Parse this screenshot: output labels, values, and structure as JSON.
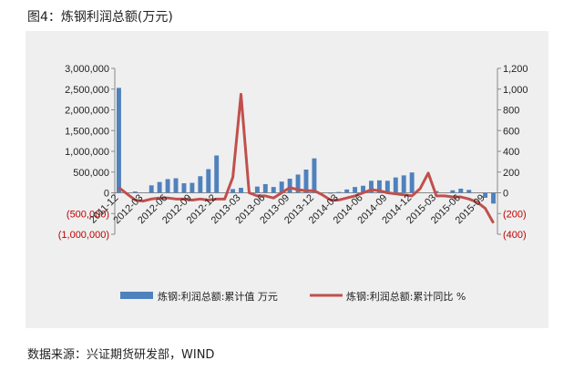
{
  "page": {
    "title": "图4：炼钢利润总额(万元)",
    "source": "数据来源：兴证期货研发部，WIND"
  },
  "colors": {
    "bar": "#4f81bd",
    "line": "#c0504d",
    "negative_tick": "#c00000",
    "background": "#efefef"
  },
  "chart_data": {
    "type": "bar",
    "title": "",
    "y_left": {
      "ylim": [
        -1000000,
        3000000
      ],
      "ticks": [
        3000000,
        2500000,
        2000000,
        1500000,
        1000000,
        500000,
        0,
        -500000,
        -1000000
      ],
      "tick_labels": [
        "3,000,000",
        "2,500,000",
        "2,000,000",
        "1,500,000",
        "1,000,000",
        "500,000",
        "0",
        "(500,000)",
        "(1,000,000)"
      ]
    },
    "y_right": {
      "ylim": [
        -400,
        1200
      ],
      "ticks": [
        1200,
        1000,
        800,
        600,
        400,
        200,
        0,
        -200,
        -400
      ],
      "tick_labels": [
        "1,200",
        "1,000",
        "800",
        "600",
        "400",
        "200",
        "0",
        "(200)",
        "(400)"
      ]
    },
    "categories": [
      "2011-12",
      "2012-01",
      "2012-02",
      "2012-03",
      "2012-04",
      "2012-05",
      "2012-06",
      "2012-07",
      "2012-08",
      "2012-09",
      "2012-10",
      "2012-11",
      "2012-12",
      "2013-01",
      "2013-02",
      "2013-03",
      "2013-04",
      "2013-05",
      "2013-06",
      "2013-07",
      "2013-08",
      "2013-09",
      "2013-10",
      "2013-11",
      "2013-12",
      "2014-01",
      "2014-02",
      "2014-03",
      "2014-04",
      "2014-05",
      "2014-06",
      "2014-07",
      "2014-08",
      "2014-09",
      "2014-10",
      "2014-11",
      "2014-12",
      "2015-01",
      "2015-02",
      "2015-03",
      "2015-04",
      "2015-05",
      "2015-06",
      "2015-07",
      "2015-08",
      "2015-09",
      "2015-10"
    ],
    "x_tick_labels": [
      "2011-12",
      "2012-03",
      "2012-06",
      "2012-09",
      "2012-12",
      "2013-03",
      "2013-06",
      "2013-09",
      "2013-12",
      "2014-03",
      "2014-06",
      "2014-09",
      "2014-12",
      "2015-03",
      "2015-06",
      "2015-09"
    ],
    "series": [
      {
        "name": "炼钢:利润总额:累计值 万元",
        "axis": "left",
        "kind": "bar",
        "values": [
          2530000,
          0,
          30000,
          0,
          180000,
          260000,
          330000,
          350000,
          230000,
          240000,
          400000,
          570000,
          900000,
          0,
          90000,
          120000,
          0,
          150000,
          210000,
          140000,
          270000,
          340000,
          440000,
          560000,
          830000,
          0,
          -20000,
          20000,
          80000,
          140000,
          170000,
          290000,
          300000,
          290000,
          370000,
          420000,
          490000,
          0,
          0,
          40000,
          0,
          60000,
          100000,
          70000,
          0,
          -120000,
          -260000
        ]
      },
      {
        "name": "炼钢:利润总额:累计同比 %",
        "axis": "right",
        "kind": "line",
        "values": [
          50,
          -10,
          -70,
          -80,
          -60,
          -50,
          -50,
          -60,
          -60,
          -70,
          -60,
          -70,
          -60,
          -60,
          150,
          950,
          0,
          -30,
          -30,
          -50,
          0,
          50,
          30,
          20,
          20,
          -20,
          -70,
          -70,
          -50,
          -30,
          0,
          30,
          20,
          0,
          -10,
          -20,
          -30,
          40,
          190,
          -30,
          -30,
          -40,
          -40,
          -60,
          -90,
          -150,
          -290
        ]
      }
    ],
    "legend": {
      "position": "bottom",
      "items": [
        "炼钢:利润总额:累计值 万元",
        "炼钢:利润总额:累计同比 %"
      ]
    },
    "grid": false
  }
}
